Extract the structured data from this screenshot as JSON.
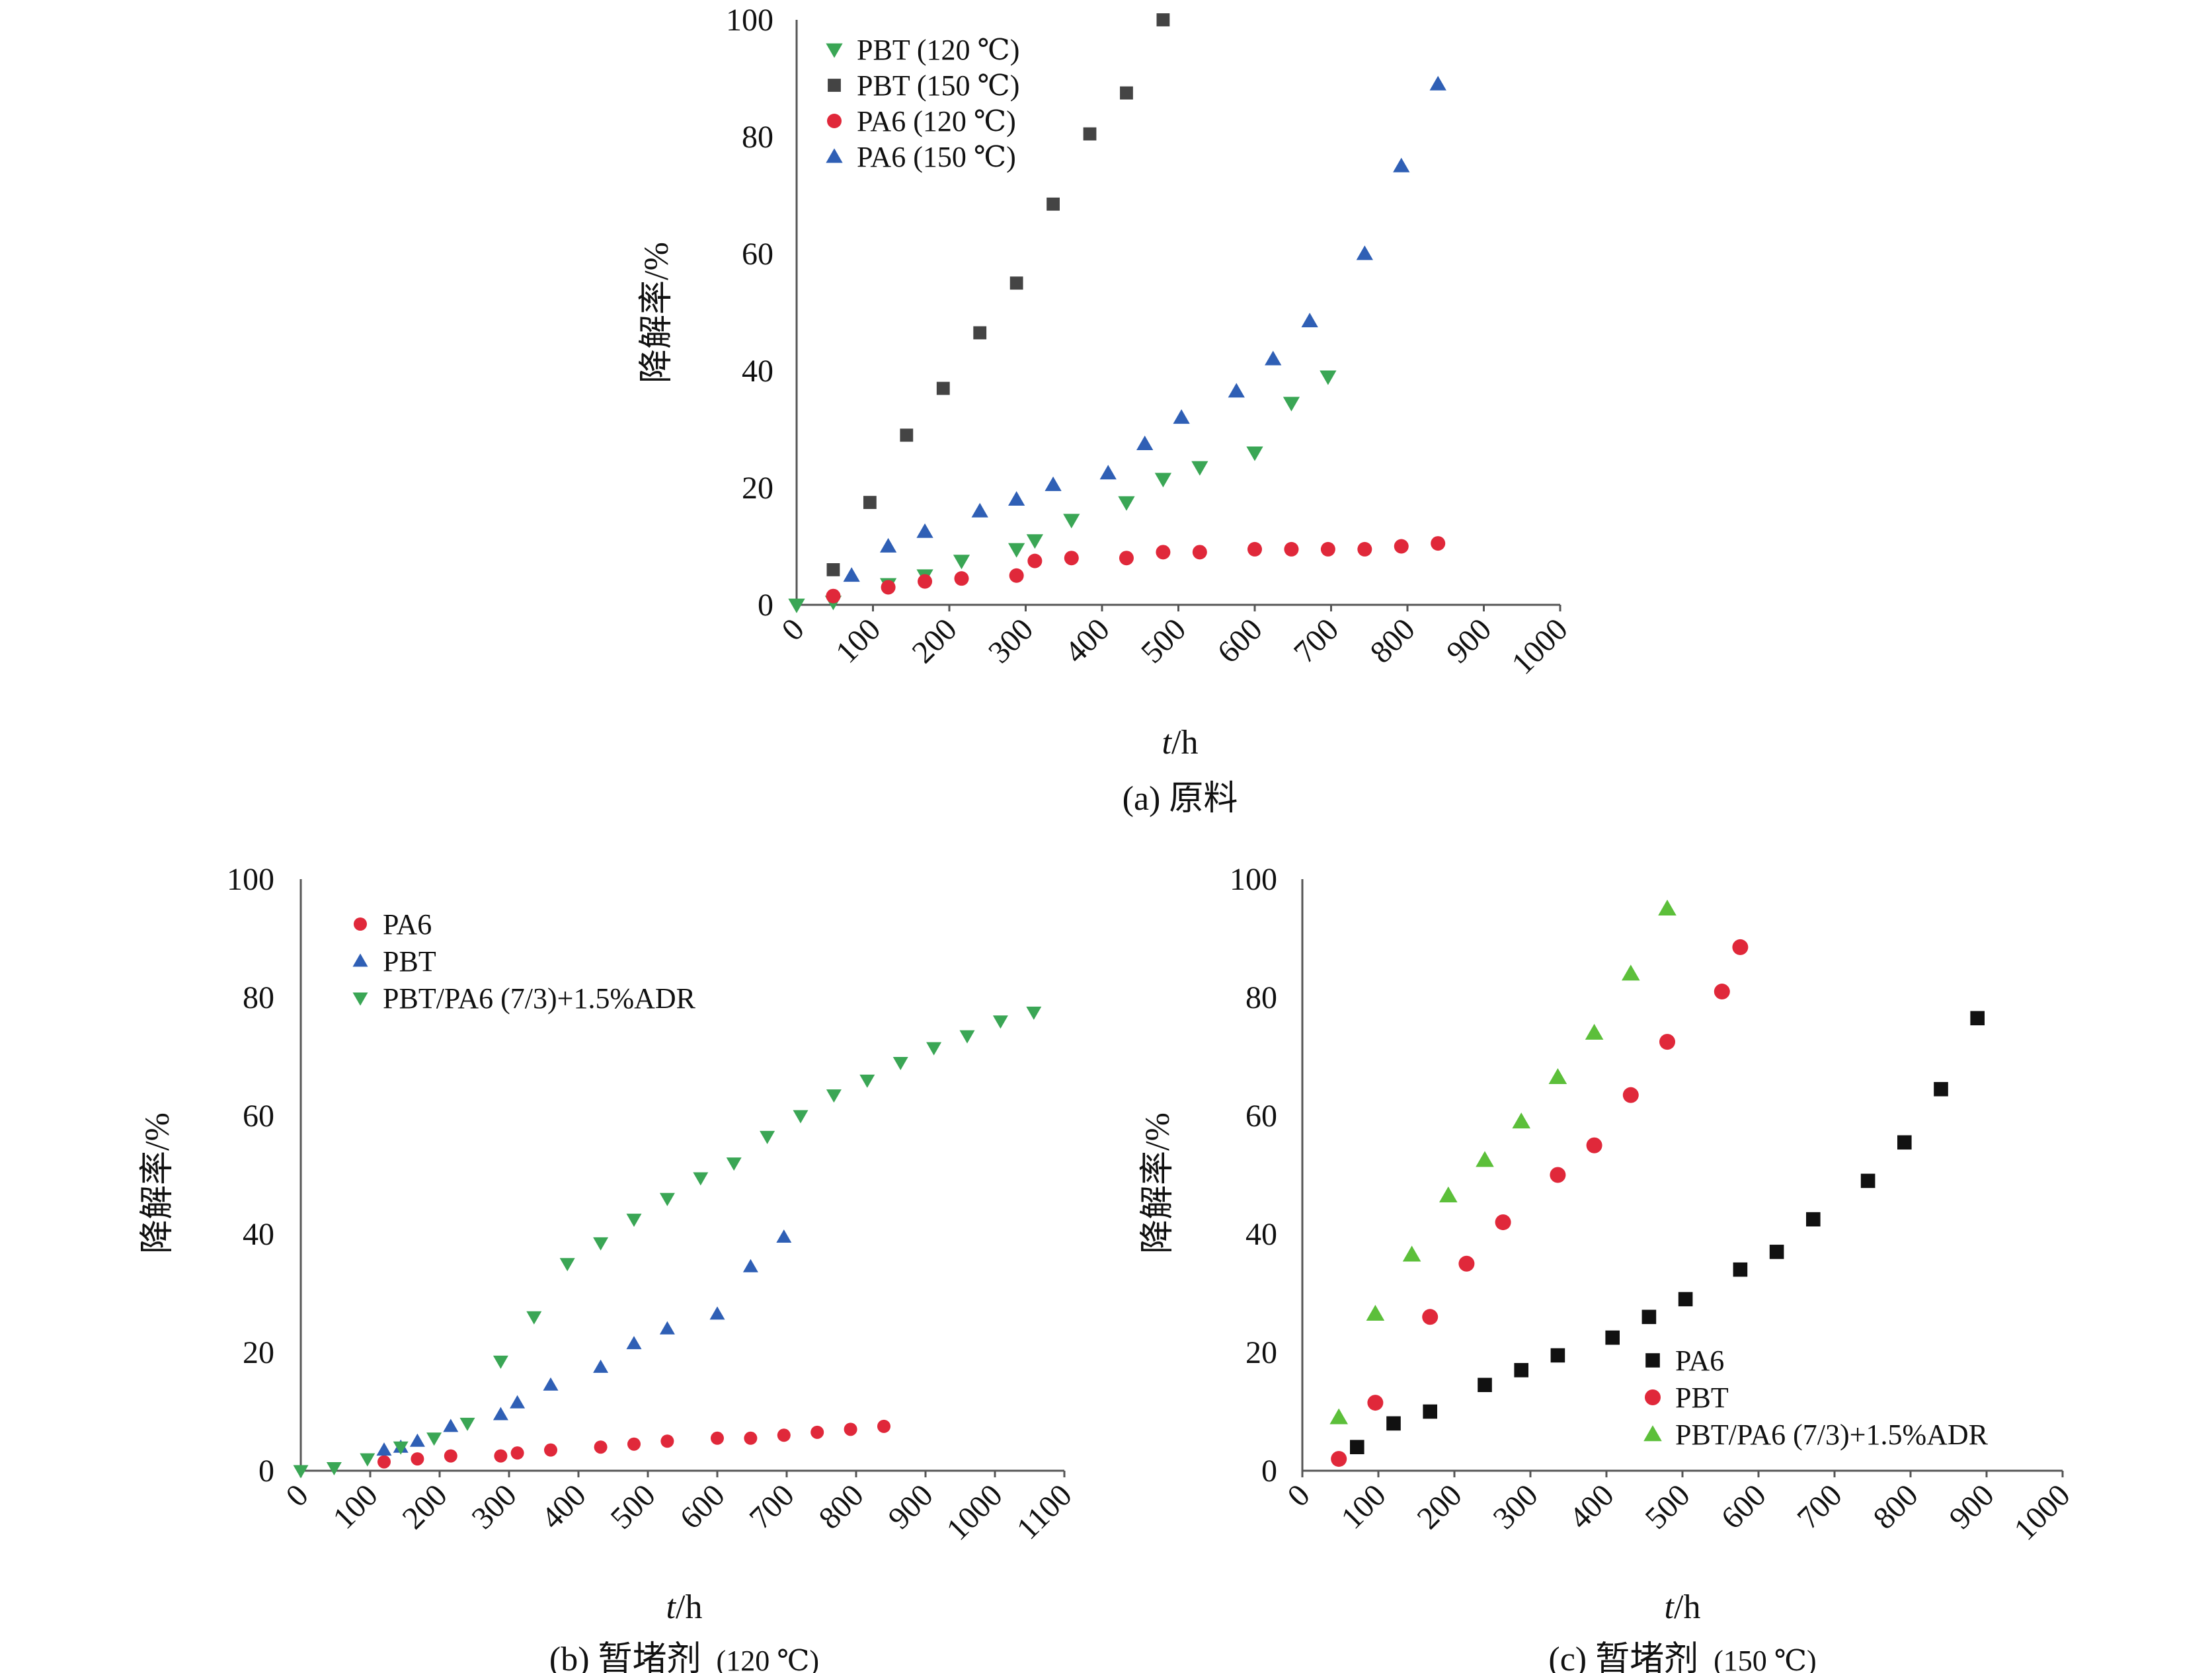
{
  "colors": {
    "green": "#3aa655",
    "dark": "#444444",
    "red": "#e0283a",
    "blue": "#2f5fb5",
    "black": "#111111",
    "lightgreen": "#5cbf3a"
  },
  "chart_data": [
    {
      "type": "scatter",
      "caption": "(a) 原料",
      "xlabel": "t/h",
      "ylabel": "降解率/%",
      "xlim": [
        0,
        1000
      ],
      "ylim": [
        0,
        100
      ],
      "xticks": [
        "0",
        "100",
        "200",
        "300",
        "400",
        "500",
        "600",
        "700",
        "800",
        "900",
        "1000"
      ],
      "yticks": [
        "0",
        "20",
        "40",
        "60",
        "80",
        "100"
      ],
      "legend_position": "top-left",
      "series": [
        {
          "name": "PBT (120 ℃)",
          "marker": "triangle-down",
          "color": "#3aa655",
          "x": [
            0,
            48,
            120,
            168,
            216,
            288,
            312,
            360,
            432,
            480,
            528,
            600,
            648,
            696
          ],
          "y": [
            0,
            0.5,
            3.5,
            5,
            7.5,
            9.5,
            11,
            14.5,
            17.5,
            21.5,
            23.5,
            26,
            34.5,
            39
          ]
        },
        {
          "name": "PBT (150 ℃)",
          "marker": "square",
          "color": "#444444",
          "x": [
            48,
            96,
            144,
            192,
            240,
            288,
            336,
            384,
            432,
            480
          ],
          "y": [
            6,
            17.5,
            29,
            37,
            46.5,
            55,
            68.5,
            80.5,
            87.5,
            100
          ]
        },
        {
          "name": "PA6 (120 ℃)",
          "marker": "circle",
          "color": "#e0283a",
          "x": [
            48,
            120,
            168,
            216,
            288,
            312,
            360,
            432,
            480,
            528,
            600,
            648,
            696,
            744,
            792,
            840
          ],
          "y": [
            1.5,
            3,
            4,
            4.5,
            5,
            7.5,
            8,
            8,
            9,
            9,
            9.5,
            9.5,
            9.5,
            9.5,
            10,
            10.5
          ]
        },
        {
          "name": "PA6 (150 ℃)",
          "marker": "triangle-up",
          "color": "#2f5fb5",
          "x": [
            72,
            120,
            168,
            240,
            288,
            336,
            408,
            456,
            504,
            576,
            624,
            672,
            744,
            792,
            840
          ],
          "y": [
            5,
            10,
            12.5,
            16,
            18,
            20.5,
            22.5,
            27.5,
            32,
            36.5,
            42,
            48.5,
            60,
            75,
            89
          ]
        }
      ]
    },
    {
      "type": "scatter",
      "caption": "(b) 暂堵剂",
      "caption_suffix": "(120 ℃)",
      "xlabel": "t/h",
      "ylabel": "降解率/%",
      "xlim": [
        0,
        1100
      ],
      "ylim": [
        0,
        100
      ],
      "xticks": [
        "0",
        "100",
        "200",
        "300",
        "400",
        "500",
        "600",
        "700",
        "800",
        "900",
        "1000",
        "1100"
      ],
      "yticks": [
        "0",
        "20",
        "40",
        "60",
        "80",
        "100"
      ],
      "legend_position": "top-left",
      "series": [
        {
          "name": "PA6",
          "marker": "circle",
          "color": "#e0283a",
          "x": [
            120,
            168,
            216,
            288,
            312,
            360,
            432,
            480,
            528,
            600,
            648,
            696,
            744,
            792,
            840
          ],
          "y": [
            1.5,
            2,
            2.5,
            2.5,
            3,
            3.5,
            4,
            4.5,
            5,
            5.5,
            5.5,
            6,
            6.5,
            7,
            7.5
          ]
        },
        {
          "name": "PBT",
          "marker": "triangle-up",
          "color": "#2f5fb5",
          "x": [
            120,
            144,
            168,
            216,
            288,
            312,
            360,
            432,
            480,
            528,
            600,
            648,
            696
          ],
          "y": [
            3.5,
            4,
            5,
            7.5,
            9.5,
            11.5,
            14.5,
            17.5,
            21.5,
            24,
            26.5,
            34.5,
            39.5
          ]
        },
        {
          "name": "PBT/PA6 (7/3)+1.5%ADR",
          "marker": "triangle-down",
          "color": "#3aa655",
          "x": [
            0,
            48,
            96,
            144,
            192,
            240,
            288,
            336,
            384,
            432,
            480,
            528,
            576,
            624,
            672,
            720,
            768,
            816,
            864,
            912,
            960,
            1008,
            1056
          ],
          "y": [
            0,
            0.5,
            2,
            4,
            5.5,
            8,
            18.5,
            26,
            35,
            38.5,
            42.5,
            46,
            49.5,
            52,
            56.5,
            60,
            63.5,
            66,
            69,
            71.5,
            73.5,
            76,
            77.5
          ]
        }
      ]
    },
    {
      "type": "scatter",
      "caption": "(c) 暂堵剂",
      "caption_suffix": "(150 ℃)",
      "xlabel": "t/h",
      "ylabel": "降解率/%",
      "xlim": [
        0,
        1000
      ],
      "ylim": [
        0,
        100
      ],
      "xticks": [
        "0",
        "100",
        "200",
        "300",
        "400",
        "500",
        "600",
        "700",
        "800",
        "900",
        "1000"
      ],
      "yticks": [
        "0",
        "20",
        "40",
        "60",
        "80",
        "100"
      ],
      "legend_position": "bottom-right",
      "series": [
        {
          "name": "PA6",
          "marker": "square",
          "color": "#111111",
          "x": [
            72,
            120,
            168,
            240,
            288,
            336,
            408,
            456,
            504,
            576,
            624,
            672,
            744,
            792,
            840,
            888
          ],
          "y": [
            4,
            8,
            10,
            14.5,
            17,
            19.5,
            22.5,
            26,
            29,
            34,
            37,
            42.5,
            49,
            55.5,
            64.5,
            76.5
          ]
        },
        {
          "name": "PBT",
          "marker": "circle",
          "color": "#e0283a",
          "x": [
            48,
            96,
            168,
            216,
            264,
            336,
            384,
            432,
            480,
            552,
            576
          ],
          "y": [
            2,
            11.5,
            26,
            35,
            42,
            50,
            55,
            63.5,
            72.5,
            81,
            88.5
          ]
        },
        {
          "name": "PBT/PA6 (7/3)+1.5%ADR",
          "marker": "triangle-up",
          "color": "#5cbf3a",
          "x": [
            48,
            96,
            144,
            192,
            240,
            288,
            336,
            384,
            432,
            480
          ],
          "y": [
            9,
            26.5,
            36.5,
            46.5,
            52.5,
            59,
            66.5,
            74,
            84,
            95
          ]
        }
      ]
    }
  ]
}
